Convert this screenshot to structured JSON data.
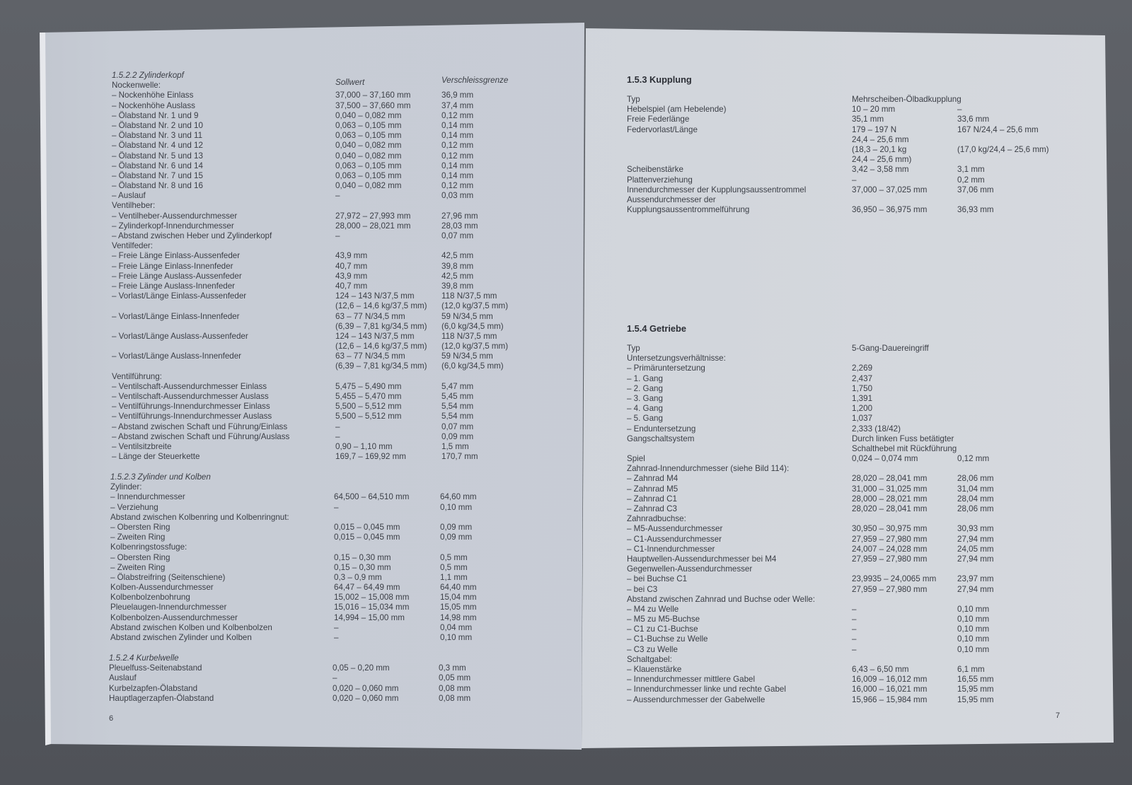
{
  "left_page": {
    "page_number": "6",
    "column_headers": {
      "nominal": "Sollwert",
      "wear_limit": "Verschleissgrenze"
    },
    "sections": [
      {
        "title": "1.5.2.2 Zylinderkopf",
        "rows": [
          [
            "Nockenwelle:",
            "",
            ""
          ],
          [
            "– Nockenhöhe Einlass",
            "37,000 – 37,160 mm",
            "36,9 mm"
          ],
          [
            "– Nockenhöhe Auslass",
            "37,500 – 37,660 mm",
            "37,4 mm"
          ],
          [
            "– Ölabstand Nr. 1 und 9",
            "0,040 – 0,082 mm",
            "0,12 mm"
          ],
          [
            "– Ölabstand Nr. 2 und 10",
            "0,063 – 0,105 mm",
            "0,14 mm"
          ],
          [
            "– Ölabstand Nr. 3 und 11",
            "0,063 – 0,105 mm",
            "0,14 mm"
          ],
          [
            "– Ölabstand Nr. 4 und 12",
            "0,040 – 0,082 mm",
            "0,12 mm"
          ],
          [
            "– Ölabstand Nr. 5 und 13",
            "0,040 – 0,082 mm",
            "0,12 mm"
          ],
          [
            "– Ölabstand Nr. 6 und 14",
            "0,063 – 0,105 mm",
            "0,14 mm"
          ],
          [
            "– Ölabstand Nr. 7 und 15",
            "0,063 – 0,105 mm",
            "0,14 mm"
          ],
          [
            "– Ölabstand Nr. 8 und 16",
            "0,040 – 0,082 mm",
            "0,12 mm"
          ],
          [
            "– Auslauf",
            "–",
            "0,03 mm"
          ],
          [
            "Ventilheber:",
            "",
            ""
          ],
          [
            "– Ventilheber-Aussendurchmesser",
            "27,972 – 27,993 mm",
            "27,96 mm"
          ],
          [
            "– Zylinderkopf-Innendurchmesser",
            "28,000 – 28,021 mm",
            "28,03 mm"
          ],
          [
            "– Abstand zwischen Heber und Zylinderkopf",
            "–",
            "0,07 mm"
          ],
          [
            "Ventilfeder:",
            "",
            ""
          ],
          [
            "– Freie Länge Einlass-Aussenfeder",
            "43,9 mm",
            "42,5 mm"
          ],
          [
            "– Freie Länge Einlass-Innenfeder",
            "40,7 mm",
            "39,8 mm"
          ],
          [
            "– Freie Länge Auslass-Aussenfeder",
            "43,9 mm",
            "42,5 mm"
          ],
          [
            "– Freie Länge Auslass-Innenfeder",
            "40,7 mm",
            "39,8 mm"
          ],
          [
            "– Vorlast/Länge Einlass-Aussenfeder",
            "124 – 143 N/37,5 mm",
            "118 N/37,5 mm"
          ],
          [
            "",
            "(12,6 – 14,6 kg/37,5 mm)",
            "(12,0 kg/37,5 mm)"
          ],
          [
            "– Vorlast/Länge Einlass-Innenfeder",
            "63 – 77 N/34,5 mm",
            "59 N/34,5 mm"
          ],
          [
            "",
            "(6,39 – 7,81 kg/34,5 mm)",
            "(6,0 kg/34,5 mm)"
          ],
          [
            "– Vorlast/Länge Auslass-Aussenfeder",
            "124 – 143 N/37,5 mm",
            "118 N/37,5 mm"
          ],
          [
            "",
            "(12,6 – 14,6 kg/37,5 mm)",
            "(12,0 kg/37,5 mm)"
          ],
          [
            "– Vorlast/Länge Auslass-Innenfeder",
            "63 – 77 N/34,5 mm",
            "59 N/34,5 mm"
          ],
          [
            "",
            "(6,39 – 7,81 kg/34,5 mm)",
            "(6,0 kg/34,5 mm)"
          ],
          [
            "Ventilführung:",
            "",
            ""
          ],
          [
            "– Ventilschaft-Aussendurchmesser Einlass",
            "5,475 – 5,490 mm",
            "5,47 mm"
          ],
          [
            "– Ventilschaft-Aussendurchmesser Auslass",
            "5,455 – 5,470 mm",
            "5,45 mm"
          ],
          [
            "– Ventilführungs-Innendurchmesser Einlass",
            "5,500 – 5,512 mm",
            "5,54 mm"
          ],
          [
            "– Ventilführungs-Innendurchmesser Auslass",
            "5,500 – 5,512 mm",
            "5,54 mm"
          ],
          [
            "– Abstand zwischen Schaft und Führung/Einlass",
            "–",
            "0,07 mm"
          ],
          [
            "– Abstand zwischen Schaft und Führung/Auslass",
            "–",
            "0,09 mm"
          ],
          [
            "– Ventilsitzbreite",
            "0,90 – 1,10 mm",
            "1,5 mm"
          ],
          [
            "– Länge der Steuerkette",
            "169,7 – 169,92 mm",
            "170,7 mm"
          ]
        ]
      },
      {
        "title": "1.5.2.3 Zylinder und Kolben",
        "rows": [
          [
            "Zylinder:",
            "",
            ""
          ],
          [
            "– Innendurchmesser",
            "64,500 – 64,510 mm",
            "64,60 mm"
          ],
          [
            "– Verziehung",
            "–",
            "0,10 mm"
          ],
          [
            "Abstand zwischen Kolbenring und Kolbenringnut:",
            "",
            ""
          ],
          [
            "– Obersten Ring",
            "0,015 – 0,045 mm",
            "0,09 mm"
          ],
          [
            "– Zweiten Ring",
            "0,015 – 0,045 mm",
            "0,09 mm"
          ],
          [
            "Kolbenringstossfuge:",
            "",
            ""
          ],
          [
            "– Obersten Ring",
            "0,15 – 0,30 mm",
            "0,5 mm"
          ],
          [
            "– Zweiten Ring",
            "0,15 – 0,30 mm",
            "0,5 mm"
          ],
          [
            "– Ölabstreifring (Seitenschiene)",
            "0,3 – 0,9 mm",
            "1,1 mm"
          ],
          [
            "Kolben-Aussendurchmesser",
            "64,47 – 64,49 mm",
            "64,40 mm"
          ],
          [
            "Kolbenbolzenbohrung",
            "15,002 – 15,008 mm",
            "15,04 mm"
          ],
          [
            "Pleuelaugen-Innendurchmesser",
            "15,016 – 15,034 mm",
            "15,05 mm"
          ],
          [
            "Kolbenbolzen-Aussendurchmesser",
            "14,994 – 15,00 mm",
            "14,98 mm"
          ],
          [
            "Abstand zwischen Kolben und Kolbenbolzen",
            "–",
            "0,04 mm"
          ],
          [
            "Abstand zwischen Zylinder und Kolben",
            "–",
            "0,10 mm"
          ]
        ]
      },
      {
        "title": "1.5.2.4 Kurbelwelle",
        "rows": [
          [
            "Pleuelfuss-Seitenabstand",
            "0,05 – 0,20 mm",
            "0,3 mm"
          ],
          [
            "Auslauf",
            "–",
            "0,05 mm"
          ],
          [
            "Kurbelzapfen-Ölabstand",
            "0,020 – 0,060 mm",
            "0,08 mm"
          ],
          [
            "Hauptlagerzapfen-Ölabstand",
            "0,020 – 0,060 mm",
            "0,08 mm"
          ]
        ]
      }
    ]
  },
  "right_page": {
    "page_number": "7",
    "sections": [
      {
        "title": "1.5.3 Kupplung",
        "rows": [
          [
            "Typ",
            "Mehrscheiben-Ölbadkupplung",
            ""
          ],
          [
            "Hebelspiel (am Hebelende)",
            "10 – 20 mm",
            "–"
          ],
          [
            "Freie Federlänge",
            "35,1 mm",
            "33,6 mm"
          ],
          [
            "Federvorlast/Länge",
            "179 – 197 N",
            "167 N/24,4 – 25,6 mm"
          ],
          [
            "",
            "24,4 – 25,6 mm",
            ""
          ],
          [
            "",
            "(18,3 – 20,1 kg",
            "(17,0 kg/24,4 – 25,6 mm)"
          ],
          [
            "",
            "24,4 – 25,6 mm)",
            ""
          ],
          [
            "Scheibenstärke",
            "3,42 – 3,58 mm",
            "3,1 mm"
          ],
          [
            "Plattenverziehung",
            "–",
            "0,2 mm"
          ],
          [
            "Innendurchmesser der Kupplungsaussentrommel",
            "37,000 – 37,025 mm",
            "37,06 mm"
          ],
          [
            "Aussendurchmesser der",
            "",
            ""
          ],
          [
            "Kupplungsaussentrommelführung",
            "36,950 – 36,975 mm",
            "36,93 mm"
          ]
        ]
      },
      {
        "title": "1.5.4 Getriebe",
        "rows": [
          [
            "Typ",
            "5-Gang-Dauereingriff",
            ""
          ],
          [
            "Untersetzungsverhältnisse:",
            "",
            ""
          ],
          [
            "– Primäruntersetzung",
            "2,269",
            ""
          ],
          [
            "– 1. Gang",
            "2,437",
            ""
          ],
          [
            "– 2. Gang",
            "1,750",
            ""
          ],
          [
            "– 3. Gang",
            "1,391",
            ""
          ],
          [
            "– 4. Gang",
            "1,200",
            ""
          ],
          [
            "– 5. Gang",
            "1,037",
            ""
          ],
          [
            "– Enduntersetzung",
            "2,333 (18/42)",
            ""
          ],
          [
            "Gangschaltsystem",
            "Durch linken Fuss betätigter",
            ""
          ],
          [
            "",
            "Schalthebel mit Rückführung",
            ""
          ],
          [
            "Spiel",
            "0,024 – 0,074 mm",
            "0,12 mm"
          ],
          [
            "Zahnrad-Innendurchmesser (siehe Bild 114):",
            "",
            ""
          ],
          [
            "– Zahnrad M4",
            "28,020 – 28,041 mm",
            "28,06 mm"
          ],
          [
            "– Zahnrad M5",
            "31,000 – 31,025 mm",
            "31,04 mm"
          ],
          [
            "– Zahnrad C1",
            "28,000 – 28,021 mm",
            "28,04 mm"
          ],
          [
            "– Zahnrad C3",
            "28,020 – 28,041 mm",
            "28,06 mm"
          ],
          [
            "Zahnradbuchse:",
            "",
            ""
          ],
          [
            "– M5-Aussendurchmesser",
            "30,950 – 30,975 mm",
            "30,93 mm"
          ],
          [
            "– C1-Aussendurchmesser",
            "27,959 – 27,980 mm",
            "27,94 mm"
          ],
          [
            "– C1-Innendurchmesser",
            "24,007 – 24,028 mm",
            "24,05 mm"
          ],
          [
            "Hauptwellen-Aussendurchmesser bei M4",
            "27,959 – 27,980 mm",
            "27,94 mm"
          ],
          [
            "Gegenwellen-Aussendurchmesser",
            "",
            ""
          ],
          [
            "– bei Buchse C1",
            "23,9935 – 24,0065 mm",
            "23,97 mm"
          ],
          [
            "– bei C3",
            "27,959 – 27,980 mm",
            "27,94 mm"
          ],
          [
            "Abstand zwischen Zahnrad und Buchse oder Welle:",
            "",
            ""
          ],
          [
            "– M4 zu Welle",
            "–",
            "0,10 mm"
          ],
          [
            "– M5 zu M5-Buchse",
            "–",
            "0,10 mm"
          ],
          [
            "– C1 zu C1-Buchse",
            "–",
            "0,10 mm"
          ],
          [
            "– C1-Buchse zu Welle",
            "–",
            "0,10 mm"
          ],
          [
            "– C3 zu Welle",
            "–",
            "0,10 mm"
          ],
          [
            "Schaltgabel:",
            "",
            ""
          ],
          [
            "– Klauenstärke",
            "6,43 – 6,50 mm",
            "6,1 mm"
          ],
          [
            "– Innendurchmesser mittlere Gabel",
            "16,009 – 16,012 mm",
            "16,55 mm"
          ],
          [
            "– Innendurchmesser linke und rechte Gabel",
            "16,000 – 16,021 mm",
            "15,95 mm"
          ],
          [
            "– Aussendurchmesser der Gabelwelle",
            "15,966 – 15,984 mm",
            "15,95 mm"
          ]
        ]
      }
    ]
  }
}
